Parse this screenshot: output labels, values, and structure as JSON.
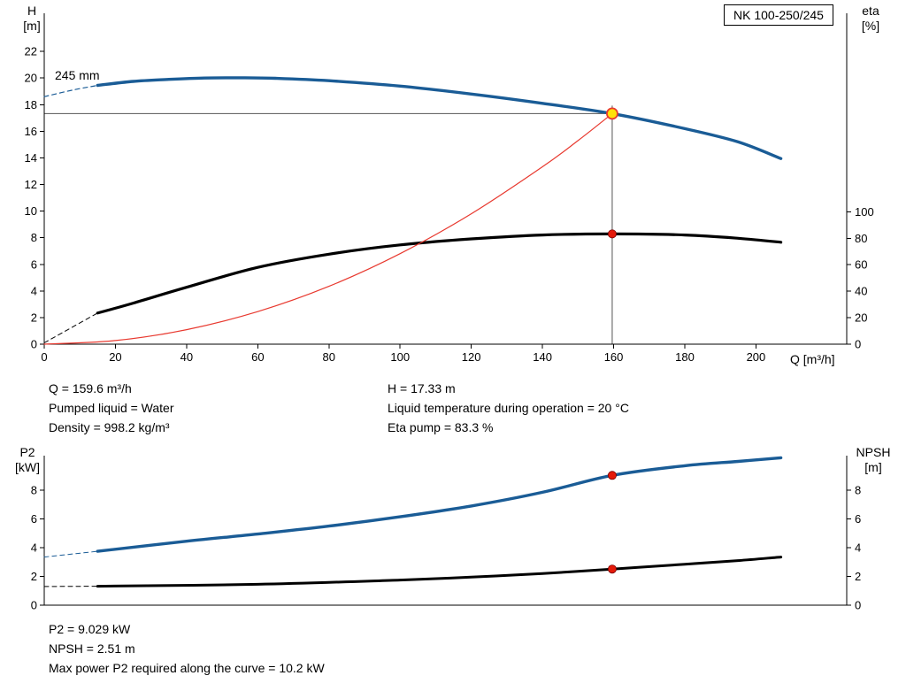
{
  "labels": {
    "model": "NK 100-250/245",
    "pump_size": "245 mm",
    "h_axis": [
      "H",
      "[m]"
    ],
    "eta_axis": [
      "eta",
      "[%]"
    ],
    "q_axis": "Q [m³/h]",
    "p2_axis": [
      "P2",
      "[kW]"
    ],
    "npsh_axis": [
      "NPSH",
      "[m]"
    ]
  },
  "info_top": {
    "col1": [
      "Q = 159.6 m³/h",
      "Pumped liquid = Water",
      "Density = 998.2 kg/m³"
    ],
    "col2": [
      "H = 17.33 m",
      "Liquid temperature during operation = 20 °C",
      "Eta pump = 83.3 %"
    ]
  },
  "info_bottom": [
    "P2 = 9.029 kW",
    "NPSH = 2.51 m",
    "Max power P2 required along the curve = 10.2 kW"
  ],
  "colors": {
    "pump": "#1a5c96",
    "eff": "#000000",
    "system": "#e8392f",
    "ref": "#555555",
    "marker_red": "#e41a0a",
    "marker_yellow": "#ffe10a"
  },
  "chart_data": [
    {
      "id": "hq",
      "type": "line",
      "title": "NK 100-250/245",
      "xlabel": "Q [m³/h]",
      "ylabel": "H [m]",
      "y2label": "eta [%]",
      "x_range": [
        0,
        225.5
      ],
      "y_range": [
        0,
        24.87
      ],
      "x_ticks": [
        0,
        20,
        40,
        60,
        80,
        100,
        120,
        140,
        160,
        180,
        200
      ],
      "y_ticks": [
        0,
        2,
        4,
        6,
        8,
        10,
        12,
        14,
        16,
        18,
        20,
        22
      ],
      "y2_ticks": [
        0,
        20,
        40,
        60,
        80,
        100
      ],
      "y2_scale": 0.0995,
      "grid": false,
      "series": [
        {
          "name": "pump-curve-dashed",
          "color": "pump",
          "width": 1.2,
          "dash": "5 4",
          "axis": "left",
          "points": [
            [
              0,
              18.6
            ],
            [
              8,
              19.1
            ],
            [
              15,
              19.45
            ]
          ]
        },
        {
          "name": "pump-curve-245mm",
          "color": "pump",
          "width": 3.4,
          "axis": "left",
          "points": [
            [
              15,
              19.45
            ],
            [
              25,
              19.75
            ],
            [
              35,
              19.9
            ],
            [
              45,
              20.0
            ],
            [
              55,
              20.02
            ],
            [
              65,
              19.98
            ],
            [
              80,
              19.8
            ],
            [
              100,
              19.4
            ],
            [
              120,
              18.8
            ],
            [
              140,
              18.1
            ],
            [
              159.6,
              17.33
            ],
            [
              180,
              16.2
            ],
            [
              195,
              15.2
            ],
            [
              207,
              13.95
            ]
          ]
        },
        {
          "name": "efficiency-curve-dashed",
          "color": "eff",
          "width": 1,
          "dash": "5 4",
          "axis": "right",
          "points": [
            [
              0,
              1
            ],
            [
              15,
              23.5
            ]
          ]
        },
        {
          "name": "efficiency-curve",
          "color": "eff",
          "width": 3.2,
          "axis": "right",
          "points": [
            [
              15,
              23.5
            ],
            [
              25,
              31
            ],
            [
              40,
              43
            ],
            [
              60,
              58
            ],
            [
              80,
              68
            ],
            [
              100,
              75
            ],
            [
              120,
              79.5
            ],
            [
              140,
              82.5
            ],
            [
              159.6,
              83.3
            ],
            [
              180,
              82.5
            ],
            [
              195,
              80
            ],
            [
              207,
              77
            ]
          ]
        },
        {
          "name": "system-curve",
          "color": "system",
          "width": 1.2,
          "axis": "left",
          "points": [
            [
              0,
              0
            ],
            [
              20,
              0.27
            ],
            [
              40,
              1.09
            ],
            [
              60,
              2.45
            ],
            [
              80,
              4.35
            ],
            [
              100,
              6.8
            ],
            [
              120,
              9.8
            ],
            [
              140,
              13.33
            ],
            [
              150,
              15.3
            ],
            [
              159.6,
              17.33
            ]
          ]
        }
      ],
      "ref_lines": {
        "vertical_q": 159.6,
        "horizontal_h": 17.33
      },
      "markers": [
        {
          "name": "duty-point",
          "q": 159.6,
          "value": 17.33,
          "axis": "left",
          "style": "duty"
        },
        {
          "name": "efficiency-point",
          "q": 159.6,
          "value": 83.3,
          "axis": "right",
          "style": "dot"
        }
      ],
      "annotations": [
        {
          "text": "245 mm"
        }
      ]
    },
    {
      "id": "p2npsh",
      "type": "line",
      "xlabel": "",
      "ylabel": "P2 [kW]",
      "y2label": "NPSH [m]",
      "x_range": [
        0,
        225.5
      ],
      "y_range": [
        0,
        10.4
      ],
      "x_ticks": [],
      "x_tick_labels": false,
      "y_ticks": [
        0,
        2,
        4,
        6,
        8
      ],
      "y2_ticks": [
        0,
        2,
        4,
        6,
        8
      ],
      "y2_scale": 1,
      "grid": false,
      "series": [
        {
          "name": "p2-curve-dashed",
          "color": "pump",
          "width": 1,
          "dash": "5 4",
          "axis": "left",
          "points": [
            [
              0,
              3.35
            ],
            [
              15,
              3.75
            ]
          ]
        },
        {
          "name": "p2-curve",
          "color": "pump",
          "width": 3.4,
          "axis": "left",
          "points": [
            [
              15,
              3.75
            ],
            [
              40,
              4.45
            ],
            [
              60,
              4.95
            ],
            [
              80,
              5.5
            ],
            [
              100,
              6.15
            ],
            [
              120,
              6.9
            ],
            [
              140,
              7.85
            ],
            [
              159.6,
              9.03
            ],
            [
              180,
              9.7
            ],
            [
              195,
              10.0
            ],
            [
              207,
              10.25
            ]
          ]
        },
        {
          "name": "npsh-curve-dashed",
          "color": "eff",
          "width": 1,
          "dash": "5 4",
          "axis": "right",
          "points": [
            [
              0,
              1.3
            ],
            [
              15,
              1.32
            ]
          ]
        },
        {
          "name": "npsh-curve",
          "color": "eff",
          "width": 3.0,
          "axis": "right",
          "points": [
            [
              15,
              1.32
            ],
            [
              60,
              1.45
            ],
            [
              100,
              1.75
            ],
            [
              120,
              1.95
            ],
            [
              140,
              2.2
            ],
            [
              159.6,
              2.51
            ],
            [
              180,
              2.85
            ],
            [
              195,
              3.1
            ],
            [
              207,
              3.35
            ]
          ]
        }
      ],
      "markers": [
        {
          "name": "p2-point",
          "q": 159.6,
          "value": 9.029,
          "axis": "left",
          "style": "dot"
        },
        {
          "name": "npsh-point",
          "q": 159.6,
          "value": 2.51,
          "axis": "right",
          "style": "dot"
        }
      ]
    }
  ]
}
